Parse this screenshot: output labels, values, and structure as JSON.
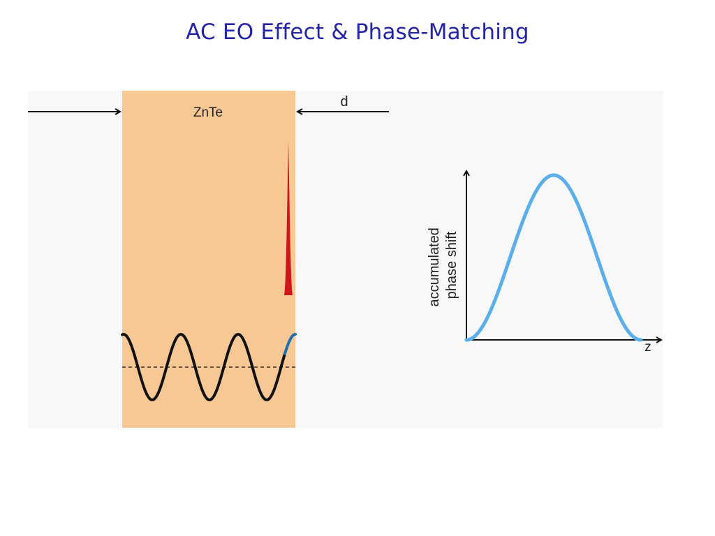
{
  "slide": {
    "title": "AC EO Effect & Phase-Matching"
  },
  "crystal": {
    "label": "ZnTe",
    "thickness_label": "d"
  },
  "plot": {
    "ylabel_line1": "accumulated",
    "ylabel_line2": "phase shift",
    "xlabel": "z"
  },
  "colors": {
    "title": "#2424a8",
    "crystal": "#f7c893",
    "background_panel": "#f8f8f8",
    "pulse": "#d0161d",
    "wave": "#111111",
    "wave_tail": "#1f6fb5",
    "phase_curve": "#5aaeea"
  }
}
